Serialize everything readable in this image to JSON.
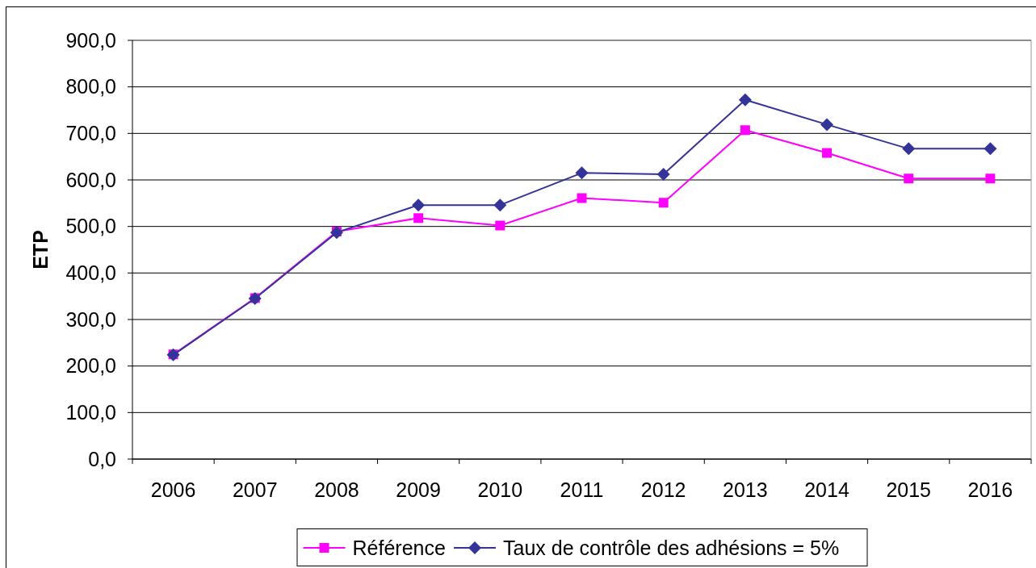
{
  "chart_data": {
    "type": "line",
    "ylabel": "ETP",
    "categories": [
      "2006",
      "2007",
      "2008",
      "2009",
      "2010",
      "2011",
      "2012",
      "2013",
      "2014",
      "2015",
      "2016"
    ],
    "series": [
      {
        "name": "Référence",
        "color": "#ff00ff",
        "marker": "square",
        "values": [
          225,
          346,
          489,
          518,
          502,
          561,
          551,
          707,
          658,
          603,
          603
        ]
      },
      {
        "name": "Taux de contrôle des adhésions = 5%",
        "color": "#333399",
        "marker": "diamond",
        "values": [
          224,
          345,
          487,
          546,
          546,
          615,
          612,
          772,
          719,
          667,
          667
        ]
      }
    ],
    "ylim": [
      0,
      900
    ],
    "yticks": [
      {
        "value": 0,
        "label": "0,0"
      },
      {
        "value": 100,
        "label": "100,0"
      },
      {
        "value": 200,
        "label": "200,0"
      },
      {
        "value": 300,
        "label": "300,0"
      },
      {
        "value": 400,
        "label": "400,0"
      },
      {
        "value": 500,
        "label": "500,0"
      },
      {
        "value": 600,
        "label": "600,0"
      },
      {
        "value": 700,
        "label": "700,0"
      },
      {
        "value": 800,
        "label": "800,0"
      },
      {
        "value": 900,
        "label": "900,0"
      }
    ],
    "grid": "y",
    "legend": "bottom",
    "line_style": "solid"
  }
}
